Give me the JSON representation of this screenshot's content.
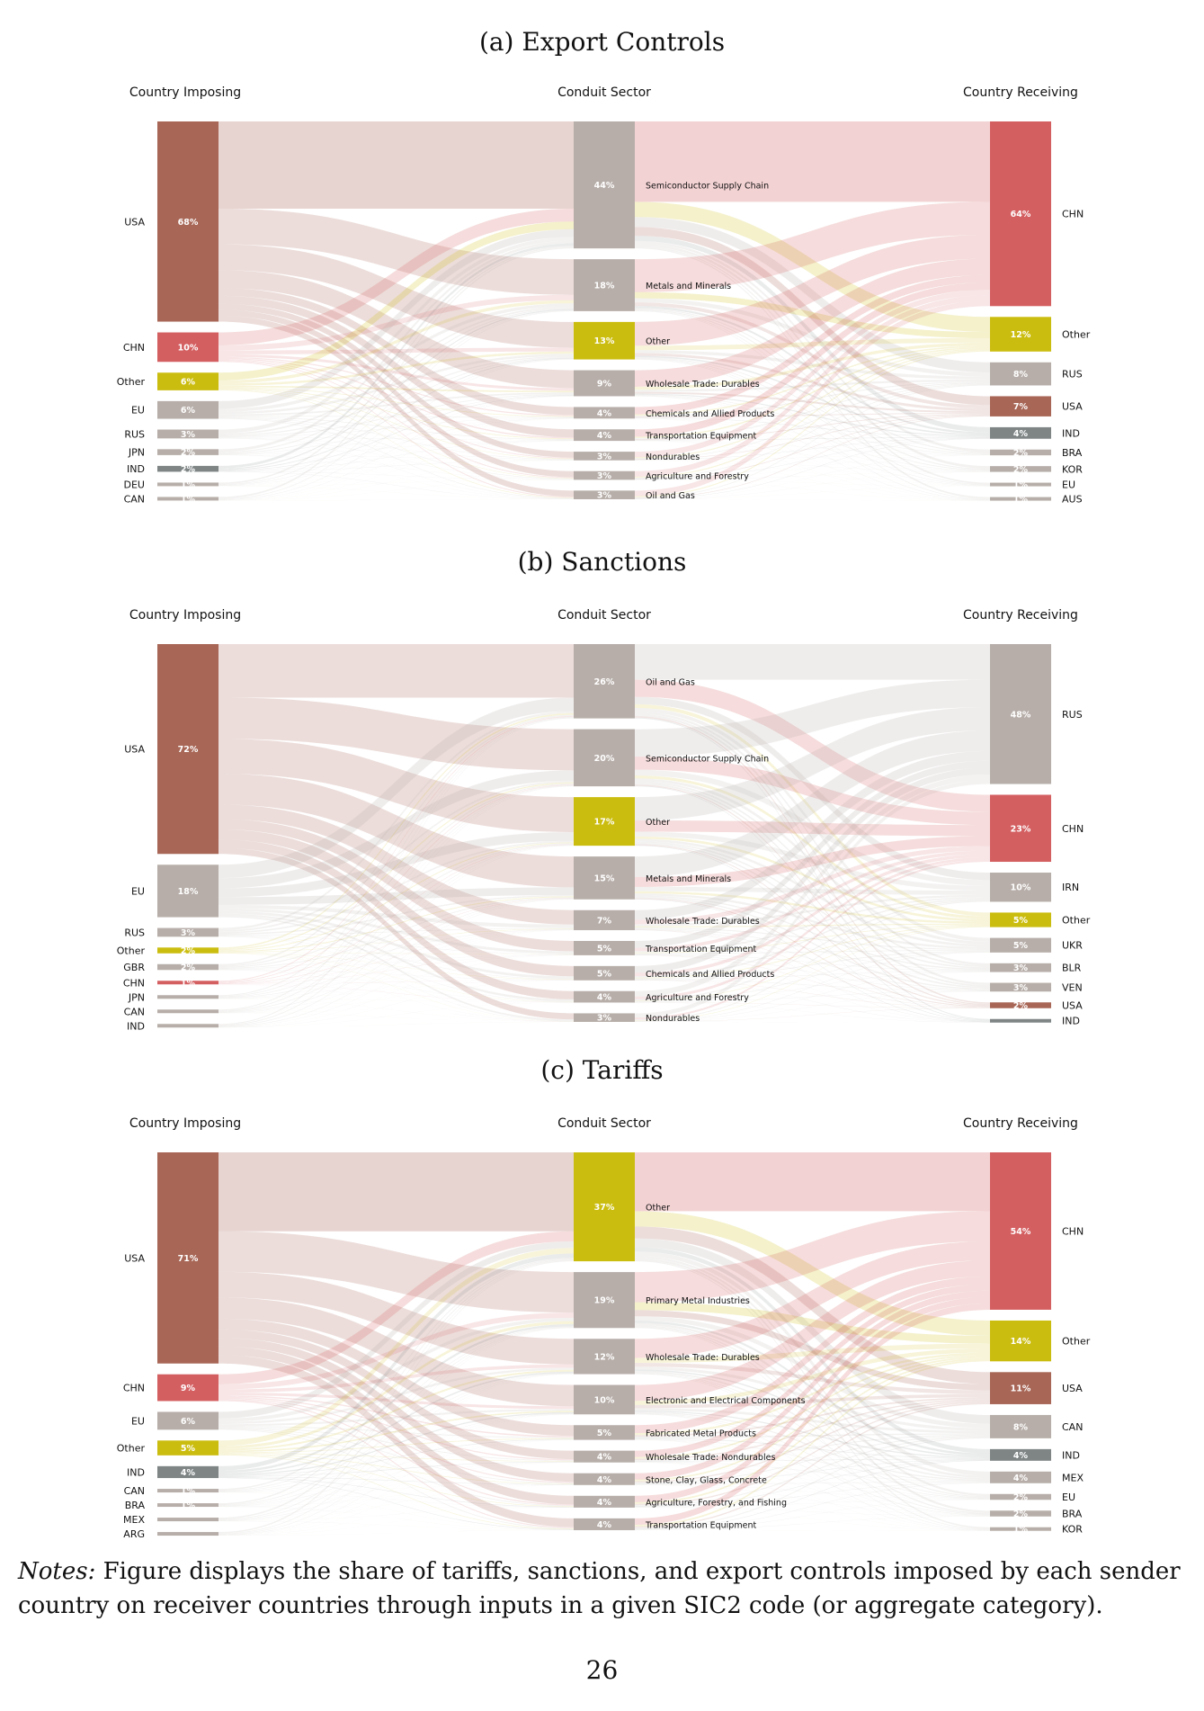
{
  "chart_data": [
    {
      "type": "sankey",
      "title": "(a) Export Controls",
      "headers": {
        "left": "Country Imposing",
        "middle": "Conduit Sector",
        "right": "Country Receiving"
      },
      "left": [
        {
          "name": "USA",
          "value": 68,
          "label": "68%",
          "color": "#a86656"
        },
        {
          "name": "CHN",
          "value": 10,
          "label": "10%",
          "color": "#d45f61"
        },
        {
          "name": "Other",
          "value": 6,
          "label": "6%",
          "color": "#cbbd10"
        },
        {
          "name": "EU",
          "value": 6,
          "label": "6%",
          "color": "#b7aea9"
        },
        {
          "name": "RUS",
          "value": 3,
          "label": "3%",
          "color": "#b7aea9"
        },
        {
          "name": "JPN",
          "value": 2,
          "label": "2%",
          "color": "#b7aea9"
        },
        {
          "name": "IND",
          "value": 2,
          "label": "2%",
          "color": "#7f8585"
        },
        {
          "name": "DEU",
          "value": 1,
          "label": "1%",
          "color": "#b7aea9"
        },
        {
          "name": "CAN",
          "value": 1,
          "label": "1%",
          "color": "#b7aea9"
        }
      ],
      "middle": [
        {
          "name": "Semiconductor Supply Chain",
          "value": 44,
          "label": "44%",
          "color": "#b7aea9"
        },
        {
          "name": "Metals and Minerals",
          "value": 18,
          "label": "18%",
          "color": "#b7aea9"
        },
        {
          "name": "Other",
          "value": 13,
          "label": "13%",
          "color": "#cbbd10"
        },
        {
          "name": "Wholesale Trade: Durables",
          "value": 9,
          "label": "9%",
          "color": "#b7aea9"
        },
        {
          "name": "Chemicals and Allied Products",
          "value": 4,
          "label": "4%",
          "color": "#b7aea9"
        },
        {
          "name": "Transportation Equipment",
          "value": 4,
          "label": "4%",
          "color": "#b7aea9"
        },
        {
          "name": "Nondurables",
          "value": 3,
          "label": "3%",
          "color": "#b7aea9"
        },
        {
          "name": "Agriculture and Forestry",
          "value": 3,
          "label": "3%",
          "color": "#b7aea9"
        },
        {
          "name": "Oil and Gas",
          "value": 3,
          "label": "3%",
          "color": "#b7aea9"
        }
      ],
      "right": [
        {
          "name": "CHN",
          "value": 64,
          "label": "64%",
          "color": "#d45f61"
        },
        {
          "name": "Other",
          "value": 12,
          "label": "12%",
          "color": "#cbbd10"
        },
        {
          "name": "RUS",
          "value": 8,
          "label": "8%",
          "color": "#b7aea9"
        },
        {
          "name": "USA",
          "value": 7,
          "label": "7%",
          "color": "#a86656"
        },
        {
          "name": "IND",
          "value": 4,
          "label": "4%",
          "color": "#7f8585"
        },
        {
          "name": "BRA",
          "value": 2,
          "label": "2%",
          "color": "#b7aea9"
        },
        {
          "name": "KOR",
          "value": 2,
          "label": "2%",
          "color": "#b7aea9"
        },
        {
          "name": "EU",
          "value": 1,
          "label": "1%",
          "color": "#b7aea9"
        },
        {
          "name": "AUS",
          "value": 1,
          "label": "1%",
          "color": "#b7aea9"
        }
      ]
    },
    {
      "type": "sankey",
      "title": "(b) Sanctions",
      "headers": {
        "left": "Country Imposing",
        "middle": "Conduit Sector",
        "right": "Country Receiving"
      },
      "left": [
        {
          "name": "USA",
          "value": 72,
          "label": "72%",
          "color": "#a86656"
        },
        {
          "name": "EU",
          "value": 18,
          "label": "18%",
          "color": "#b7aea9"
        },
        {
          "name": "RUS",
          "value": 3,
          "label": "3%",
          "color": "#b7aea9"
        },
        {
          "name": "Other",
          "value": 2,
          "label": "2%",
          "color": "#cbbd10"
        },
        {
          "name": "GBR",
          "value": 2,
          "label": "2%",
          "color": "#b7aea9"
        },
        {
          "name": "CHN",
          "value": 1,
          "label": "1%",
          "color": "#d45f61"
        },
        {
          "name": "JPN",
          "value": 1,
          "label": "",
          "color": "#b7aea9"
        },
        {
          "name": "CAN",
          "value": 0.5,
          "label": "",
          "color": "#b7aea9"
        },
        {
          "name": "IND",
          "value": 0.5,
          "label": "",
          "color": "#b7aea9"
        }
      ],
      "middle": [
        {
          "name": "Oil and Gas",
          "value": 26,
          "label": "26%",
          "color": "#b7aea9"
        },
        {
          "name": "Semiconductor Supply Chain",
          "value": 20,
          "label": "20%",
          "color": "#b7aea9"
        },
        {
          "name": "Other",
          "value": 17,
          "label": "17%",
          "color": "#cbbd10"
        },
        {
          "name": "Metals and Minerals",
          "value": 15,
          "label": "15%",
          "color": "#b7aea9"
        },
        {
          "name": "Wholesale Trade: Durables",
          "value": 7,
          "label": "7%",
          "color": "#b7aea9"
        },
        {
          "name": "Transportation Equipment",
          "value": 5,
          "label": "5%",
          "color": "#b7aea9"
        },
        {
          "name": "Chemicals and Allied Products",
          "value": 5,
          "label": "5%",
          "color": "#b7aea9"
        },
        {
          "name": "Agriculture and Forestry",
          "value": 4,
          "label": "4%",
          "color": "#b7aea9"
        },
        {
          "name": "Nondurables",
          "value": 3,
          "label": "3%",
          "color": "#b7aea9"
        }
      ],
      "right": [
        {
          "name": "RUS",
          "value": 48,
          "label": "48%",
          "color": "#b7aea9"
        },
        {
          "name": "CHN",
          "value": 23,
          "label": "23%",
          "color": "#d45f61"
        },
        {
          "name": "IRN",
          "value": 10,
          "label": "10%",
          "color": "#b7aea9"
        },
        {
          "name": "Other",
          "value": 5,
          "label": "5%",
          "color": "#cbbd10"
        },
        {
          "name": "UKR",
          "value": 5,
          "label": "5%",
          "color": "#b7aea9"
        },
        {
          "name": "BLR",
          "value": 3,
          "label": "3%",
          "color": "#b7aea9"
        },
        {
          "name": "VEN",
          "value": 3,
          "label": "3%",
          "color": "#b7aea9"
        },
        {
          "name": "USA",
          "value": 2,
          "label": "2%",
          "color": "#a86656"
        },
        {
          "name": "IND",
          "value": 1,
          "label": "",
          "color": "#7f8585"
        }
      ]
    },
    {
      "type": "sankey",
      "title": "(c) Tariffs",
      "headers": {
        "left": "Country Imposing",
        "middle": "Conduit Sector",
        "right": "Country Receiving"
      },
      "left": [
        {
          "name": "USA",
          "value": 71,
          "label": "71%",
          "color": "#a86656"
        },
        {
          "name": "CHN",
          "value": 9,
          "label": "9%",
          "color": "#d45f61"
        },
        {
          "name": "EU",
          "value": 6,
          "label": "6%",
          "color": "#b7aea9"
        },
        {
          "name": "Other",
          "value": 5,
          "label": "5%",
          "color": "#cbbd10"
        },
        {
          "name": "IND",
          "value": 4,
          "label": "4%",
          "color": "#7f8585"
        },
        {
          "name": "CAN",
          "value": 1,
          "label": "1%",
          "color": "#b7aea9"
        },
        {
          "name": "BRA",
          "value": 1,
          "label": "1%",
          "color": "#b7aea9"
        },
        {
          "name": "MEX",
          "value": 0.5,
          "label": "",
          "color": "#b7aea9"
        },
        {
          "name": "ARG",
          "value": 0.5,
          "label": "",
          "color": "#b7aea9"
        }
      ],
      "middle": [
        {
          "name": "Other",
          "value": 37,
          "label": "37%",
          "color": "#cbbd10"
        },
        {
          "name": "Primary Metal Industries",
          "value": 19,
          "label": "19%",
          "color": "#b7aea9"
        },
        {
          "name": "Wholesale Trade: Durables",
          "value": 12,
          "label": "12%",
          "color": "#b7aea9"
        },
        {
          "name": "Electronic and Electrical Components",
          "value": 10,
          "label": "10%",
          "color": "#b7aea9"
        },
        {
          "name": "Fabricated Metal Products",
          "value": 5,
          "label": "5%",
          "color": "#b7aea9"
        },
        {
          "name": "Wholesale Trade: Nondurables",
          "value": 4,
          "label": "4%",
          "color": "#b7aea9"
        },
        {
          "name": "Stone, Clay, Glass, Concrete",
          "value": 4,
          "label": "4%",
          "color": "#b7aea9"
        },
        {
          "name": "Agriculture, Forestry, and Fishing",
          "value": 4,
          "label": "4%",
          "color": "#b7aea9"
        },
        {
          "name": "Transportation Equipment",
          "value": 4,
          "label": "4%",
          "color": "#b7aea9"
        }
      ],
      "right": [
        {
          "name": "CHN",
          "value": 54,
          "label": "54%",
          "color": "#d45f61"
        },
        {
          "name": "Other",
          "value": 14,
          "label": "14%",
          "color": "#cbbd10"
        },
        {
          "name": "USA",
          "value": 11,
          "label": "11%",
          "color": "#a86656"
        },
        {
          "name": "CAN",
          "value": 8,
          "label": "8%",
          "color": "#b7aea9"
        },
        {
          "name": "IND",
          "value": 4,
          "label": "4%",
          "color": "#7f8585"
        },
        {
          "name": "MEX",
          "value": 4,
          "label": "4%",
          "color": "#b7aea9"
        },
        {
          "name": "EU",
          "value": 2,
          "label": "2%",
          "color": "#b7aea9"
        },
        {
          "name": "BRA",
          "value": 2,
          "label": "2%",
          "color": "#b7aea9"
        },
        {
          "name": "KOR",
          "value": 1,
          "label": "1%",
          "color": "#b7aea9"
        }
      ]
    }
  ],
  "notes": {
    "label": "Notes:",
    "text": " Figure displays the share of tariffs, sanctions, and export controls imposed by each sender country on receiver countries through inputs in a given SIC2 code (or aggregate category)."
  },
  "page_number": "26"
}
